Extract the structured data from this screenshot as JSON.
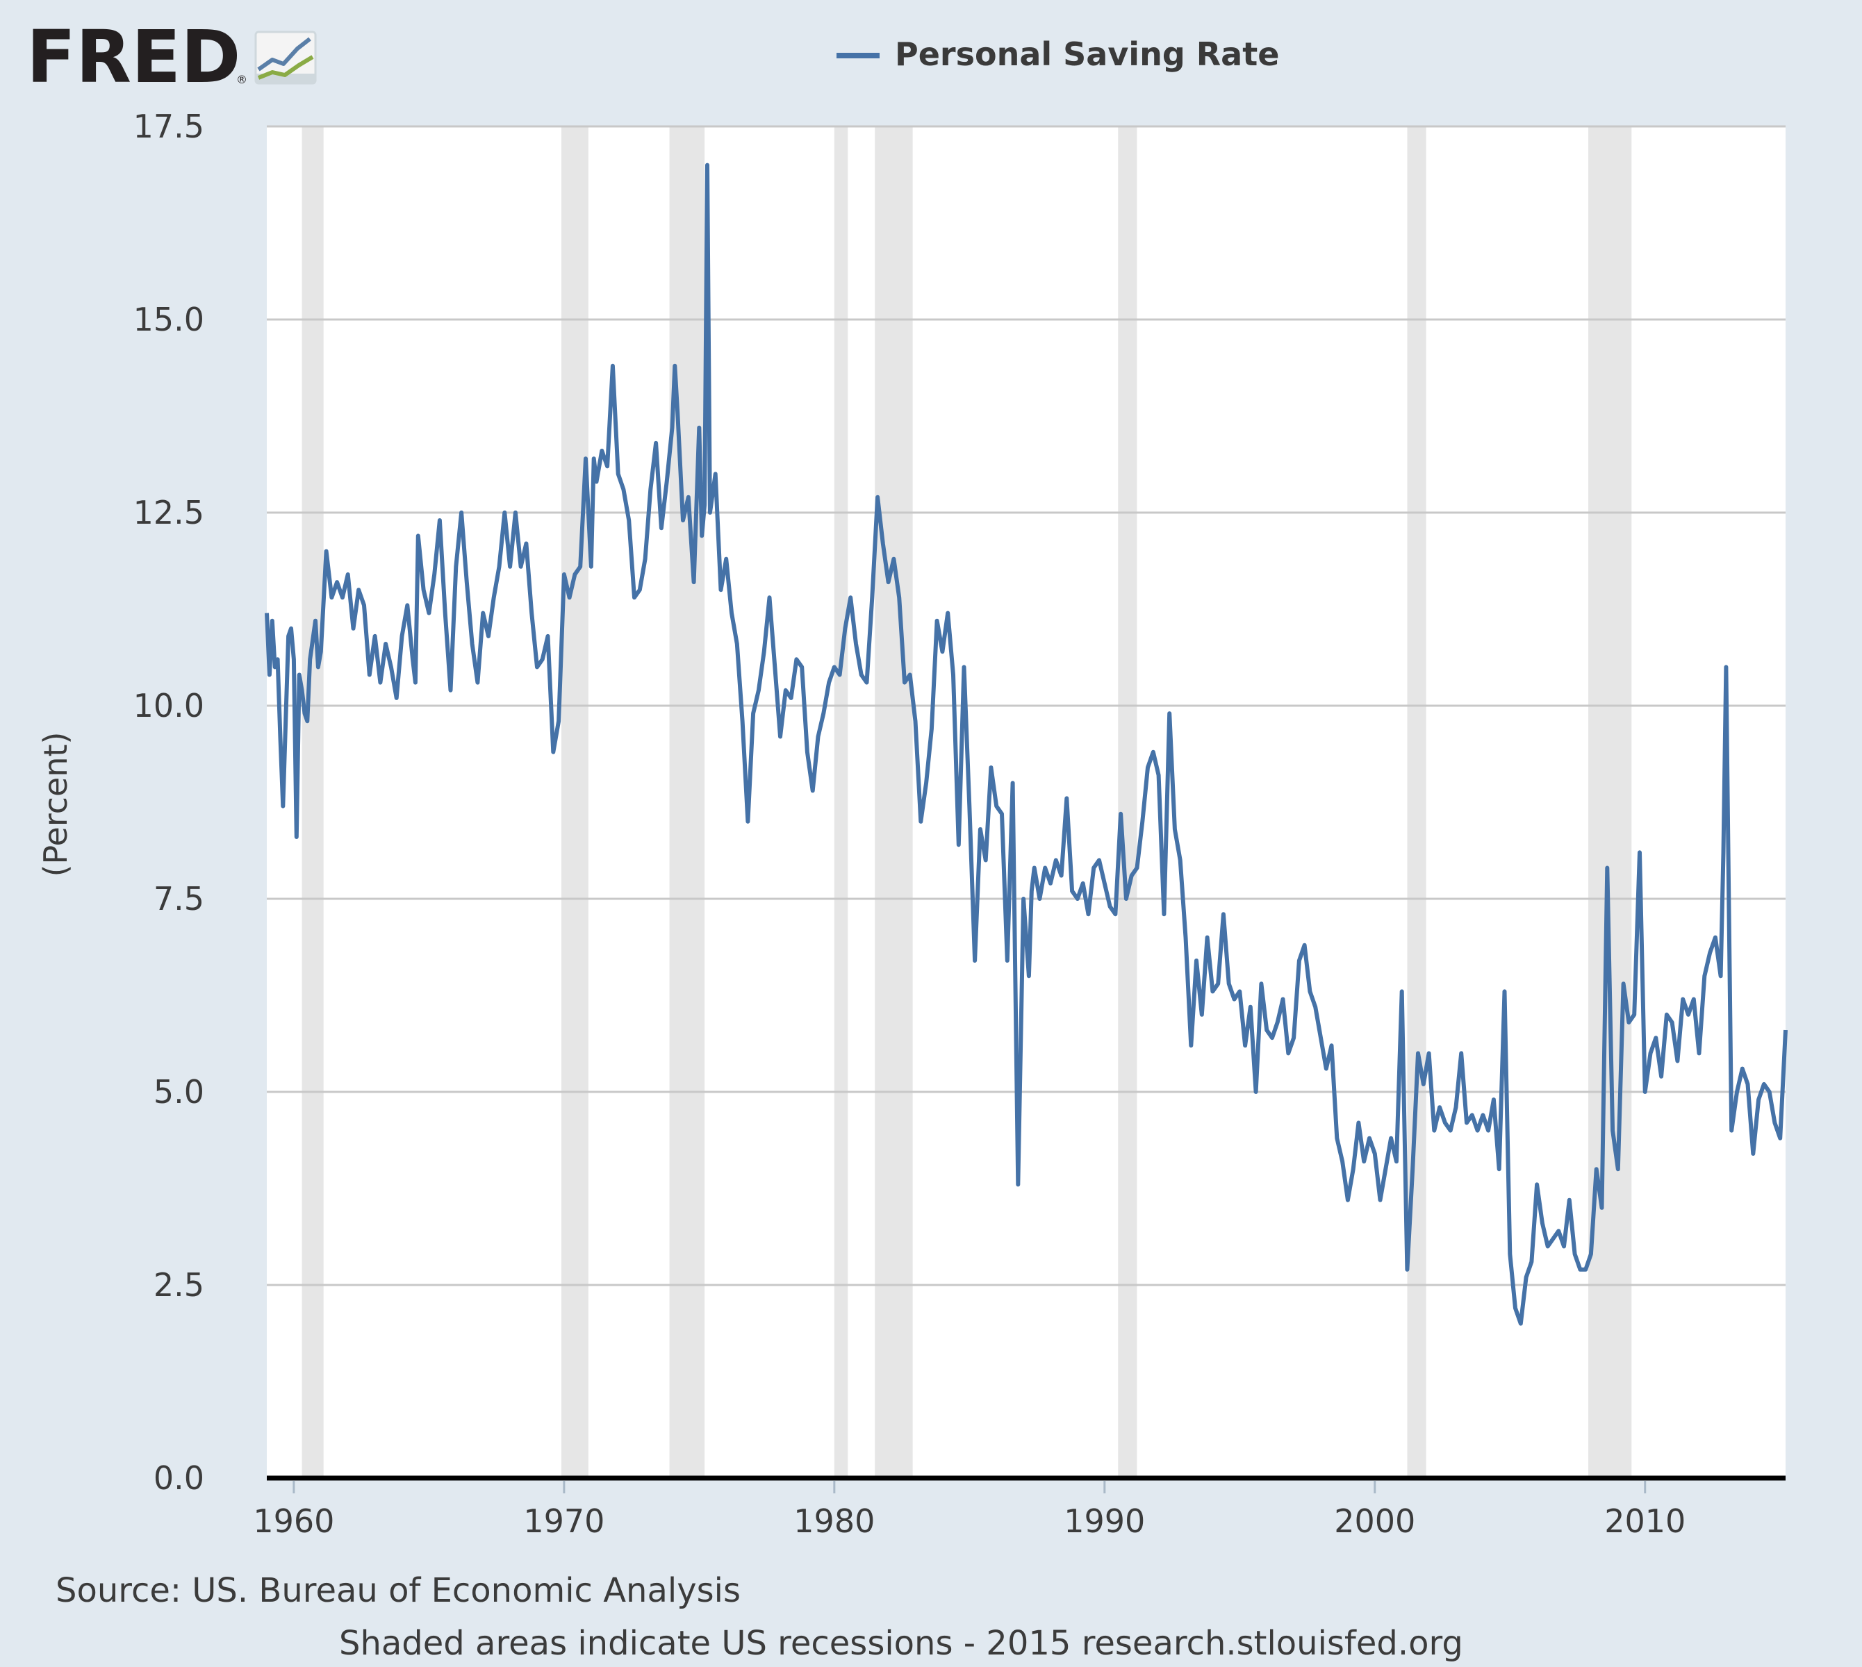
{
  "logo": {
    "text": "FRED",
    "registered": "®"
  },
  "colors": {
    "background": "#e1e9f0",
    "plot_background": "#ffffff",
    "series": "#4572a7",
    "recession_shade": "#e6e6e6",
    "grid": "#c8c8c8",
    "axis": "#000000"
  },
  "footer": {
    "source": "Source: US. Bureau of Economic Analysis",
    "note": "Shaded areas indicate US recessions - 2015 research.stlouisfed.org"
  },
  "chart_data": {
    "type": "line",
    "legend": "Personal Saving Rate",
    "legend_position": "top-center",
    "ylabel": "(Percent)",
    "xlabel": "",
    "xlim": [
      1959.0,
      2015.2
    ],
    "ylim": [
      0,
      17.5
    ],
    "x_ticks": [
      "1960",
      "1970",
      "1980",
      "1990",
      "2000",
      "2010"
    ],
    "x_tick_values": [
      1960,
      1970,
      1980,
      1990,
      2000,
      2010
    ],
    "y_ticks": [
      "0.0",
      "2.5",
      "5.0",
      "7.5",
      "10.0",
      "12.5",
      "15.0",
      "17.5"
    ],
    "y_tick_values": [
      0,
      2.5,
      5,
      7.5,
      10,
      12.5,
      15,
      17.5
    ],
    "grid": true,
    "recessions": [
      [
        1960.3,
        1961.1
      ],
      [
        1969.9,
        1970.9
      ],
      [
        1973.9,
        1975.2
      ],
      [
        1980.0,
        1980.5
      ],
      [
        1981.5,
        1982.9
      ],
      [
        1990.5,
        1991.2
      ],
      [
        2001.2,
        2001.9
      ],
      [
        2007.9,
        2009.5
      ]
    ],
    "series": [
      {
        "name": "Personal Saving Rate",
        "x": [
          1959.0,
          1959.1,
          1959.2,
          1959.3,
          1959.4,
          1959.5,
          1959.6,
          1959.7,
          1959.8,
          1959.9,
          1960.0,
          1960.1,
          1960.2,
          1960.3,
          1960.4,
          1960.5,
          1960.6,
          1960.8,
          1960.9,
          1961.0,
          1961.2,
          1961.4,
          1961.6,
          1961.8,
          1962.0,
          1962.2,
          1962.4,
          1962.6,
          1962.8,
          1963.0,
          1963.2,
          1963.4,
          1963.6,
          1963.8,
          1964.0,
          1964.2,
          1964.4,
          1964.5,
          1964.6,
          1964.8,
          1965.0,
          1965.2,
          1965.4,
          1965.6,
          1965.8,
          1966.0,
          1966.2,
          1966.4,
          1966.6,
          1966.8,
          1967.0,
          1967.2,
          1967.4,
          1967.6,
          1967.8,
          1968.0,
          1968.2,
          1968.4,
          1968.6,
          1968.8,
          1969.0,
          1969.2,
          1969.4,
          1969.6,
          1969.8,
          1970.0,
          1970.2,
          1970.4,
          1970.6,
          1970.8,
          1971.0,
          1971.1,
          1971.2,
          1971.4,
          1971.6,
          1971.8,
          1972.0,
          1972.2,
          1972.4,
          1972.6,
          1972.8,
          1973.0,
          1973.2,
          1973.4,
          1973.6,
          1973.8,
          1974.0,
          1974.1,
          1974.2,
          1974.4,
          1974.6,
          1974.8,
          1975.0,
          1975.1,
          1975.2,
          1975.3,
          1975.4,
          1975.6,
          1975.8,
          1976.0,
          1976.2,
          1976.4,
          1976.6,
          1976.8,
          1977.0,
          1977.2,
          1977.4,
          1977.6,
          1977.8,
          1978.0,
          1978.2,
          1978.4,
          1978.6,
          1978.8,
          1979.0,
          1979.2,
          1979.4,
          1979.6,
          1979.8,
          1980.0,
          1980.2,
          1980.4,
          1980.6,
          1980.8,
          1981.0,
          1981.2,
          1981.4,
          1981.6,
          1981.8,
          1982.0,
          1982.2,
          1982.4,
          1982.6,
          1982.8,
          1983.0,
          1983.2,
          1983.4,
          1983.6,
          1983.8,
          1984.0,
          1984.2,
          1984.4,
          1984.6,
          1984.8,
          1985.0,
          1985.2,
          1985.4,
          1985.6,
          1985.8,
          1986.0,
          1986.2,
          1986.4,
          1986.6,
          1986.8,
          1987.0,
          1987.2,
          1987.3,
          1987.4,
          1987.6,
          1987.8,
          1988.0,
          1988.2,
          1988.4,
          1988.6,
          1988.8,
          1989.0,
          1989.2,
          1989.4,
          1989.6,
          1989.8,
          1990.0,
          1990.2,
          1990.4,
          1990.6,
          1990.8,
          1991.0,
          1991.2,
          1991.4,
          1991.6,
          1991.8,
          1992.0,
          1992.2,
          1992.4,
          1992.6,
          1992.8,
          1993.0,
          1993.2,
          1993.4,
          1993.6,
          1993.8,
          1994.0,
          1994.2,
          1994.4,
          1994.6,
          1994.8,
          1995.0,
          1995.2,
          1995.4,
          1995.6,
          1995.8,
          1996.0,
          1996.2,
          1996.4,
          1996.6,
          1996.8,
          1997.0,
          1997.2,
          1997.4,
          1997.6,
          1997.8,
          1998.0,
          1998.2,
          1998.4,
          1998.6,
          1998.8,
          1999.0,
          1999.2,
          1999.4,
          1999.6,
          1999.8,
          2000.0,
          2000.2,
          2000.4,
          2000.6,
          2000.8,
          2001.0,
          2001.2,
          2001.4,
          2001.6,
          2001.8,
          2002.0,
          2002.2,
          2002.4,
          2002.6,
          2002.8,
          2003.0,
          2003.2,
          2003.4,
          2003.6,
          2003.8,
          2004.0,
          2004.2,
          2004.4,
          2004.6,
          2004.8,
          2005.0,
          2005.2,
          2005.4,
          2005.6,
          2005.8,
          2006.0,
          2006.2,
          2006.4,
          2006.6,
          2006.8,
          2007.0,
          2007.2,
          2007.4,
          2007.6,
          2007.8,
          2008.0,
          2008.2,
          2008.4,
          2008.6,
          2008.8,
          2009.0,
          2009.2,
          2009.4,
          2009.6,
          2009.8,
          2010.0,
          2010.2,
          2010.4,
          2010.6,
          2010.8,
          2011.0,
          2011.2,
          2011.4,
          2011.6,
          2011.8,
          2012.0,
          2012.2,
          2012.4,
          2012.6,
          2012.8,
          2012.9,
          2013.0,
          2013.2,
          2013.4,
          2013.6,
          2013.8,
          2014.0,
          2014.2,
          2014.4,
          2014.6,
          2014.8,
          2015.0,
          2015.2
        ],
        "values": [
          11.2,
          10.4,
          11.1,
          10.5,
          10.6,
          9.6,
          8.7,
          9.8,
          10.9,
          11.0,
          10.6,
          8.3,
          10.4,
          10.2,
          9.9,
          9.8,
          10.6,
          11.1,
          10.5,
          10.7,
          12.0,
          11.4,
          11.6,
          11.4,
          11.7,
          11.0,
          11.5,
          11.3,
          10.4,
          10.9,
          10.3,
          10.8,
          10.5,
          10.1,
          10.9,
          11.3,
          10.6,
          10.3,
          12.2,
          11.5,
          11.2,
          11.7,
          12.4,
          11.2,
          10.2,
          11.8,
          12.5,
          11.6,
          10.8,
          10.3,
          11.2,
          10.9,
          11.4,
          11.8,
          12.5,
          11.8,
          12.5,
          11.8,
          12.1,
          11.2,
          10.5,
          10.6,
          10.9,
          9.4,
          9.8,
          11.7,
          11.4,
          11.7,
          11.8,
          13.2,
          11.8,
          13.2,
          12.9,
          13.3,
          13.1,
          14.4,
          13.0,
          12.8,
          12.4,
          11.4,
          11.5,
          11.9,
          12.8,
          13.4,
          12.3,
          12.9,
          13.6,
          14.4,
          13.8,
          12.4,
          12.7,
          11.6,
          13.6,
          12.2,
          12.6,
          17.0,
          12.5,
          13.0,
          11.5,
          11.9,
          11.2,
          10.8,
          9.8,
          8.5,
          9.9,
          10.2,
          10.7,
          11.4,
          10.5,
          9.6,
          10.2,
          10.1,
          10.6,
          10.5,
          9.4,
          8.9,
          9.6,
          9.9,
          10.3,
          10.5,
          10.4,
          11.0,
          11.4,
          10.8,
          10.4,
          10.3,
          11.4,
          12.7,
          12.1,
          11.6,
          11.9,
          11.4,
          10.3,
          10.4,
          9.8,
          8.5,
          9.0,
          9.7,
          11.1,
          10.7,
          11.2,
          10.4,
          8.2,
          10.5,
          8.7,
          6.7,
          8.4,
          8.0,
          9.2,
          8.7,
          8.6,
          6.7,
          9.0,
          3.8,
          7.5,
          6.5,
          7.6,
          7.9,
          7.5,
          7.9,
          7.7,
          8.0,
          7.8,
          8.8,
          7.6,
          7.5,
          7.7,
          7.3,
          7.9,
          8.0,
          7.7,
          7.4,
          7.3,
          8.6,
          7.5,
          7.8,
          7.9,
          8.5,
          9.2,
          9.4,
          9.1,
          7.3,
          9.9,
          8.4,
          8.0,
          7.0,
          5.6,
          6.7,
          6.0,
          7.0,
          6.3,
          6.4,
          7.3,
          6.4,
          6.2,
          6.3,
          5.6,
          6.1,
          5.0,
          6.4,
          5.8,
          5.7,
          5.9,
          6.2,
          5.5,
          5.7,
          6.7,
          6.9,
          6.3,
          6.1,
          5.7,
          5.3,
          5.6,
          4.4,
          4.1,
          3.6,
          4.0,
          4.6,
          4.1,
          4.4,
          4.2,
          3.6,
          4.0,
          4.4,
          4.1,
          6.3,
          2.7,
          4.0,
          5.5,
          5.1,
          5.5,
          4.5,
          4.8,
          4.6,
          4.5,
          4.8,
          5.5,
          4.6,
          4.7,
          4.5,
          4.7,
          4.5,
          4.9,
          4.0,
          6.3,
          2.9,
          2.2,
          2.0,
          2.6,
          2.8,
          3.8,
          3.3,
          3.0,
          3.1,
          3.2,
          3.0,
          3.6,
          2.9,
          2.7,
          2.7,
          2.9,
          4.0,
          3.5,
          7.9,
          4.5,
          4.0,
          6.4,
          5.9,
          6.0,
          8.1,
          5.0,
          5.5,
          5.7,
          5.2,
          6.0,
          5.9,
          5.4,
          6.2,
          6.0,
          6.2,
          5.5,
          6.5,
          6.8,
          7.0,
          6.5,
          8.1,
          10.5,
          4.5,
          5.0,
          5.3,
          5.1,
          4.2,
          4.9,
          5.1,
          5.0,
          4.6,
          4.4,
          5.8
        ]
      }
    ]
  }
}
